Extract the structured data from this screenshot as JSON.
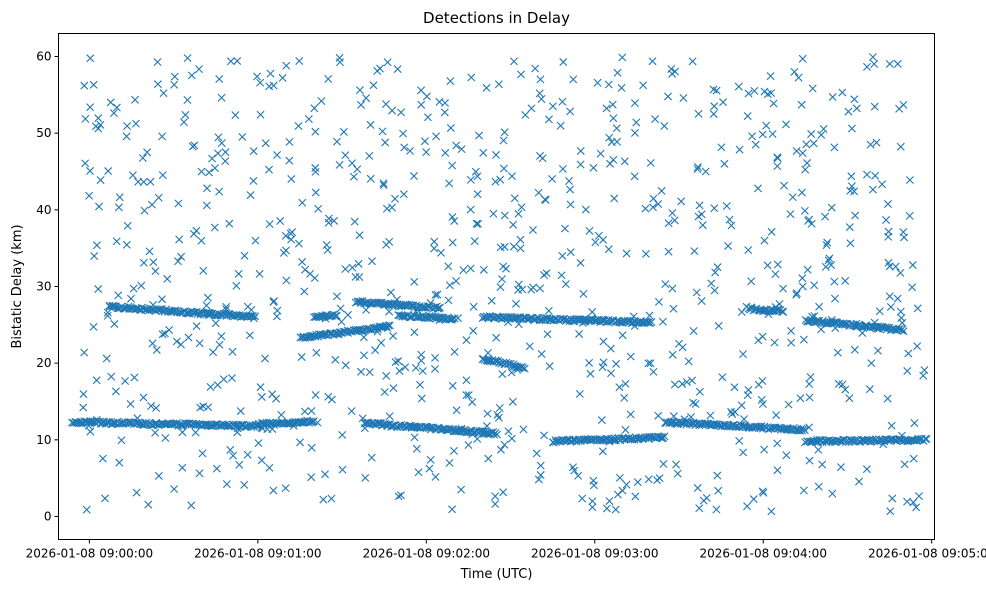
{
  "chart_data": {
    "type": "scatter",
    "title": "Detections in Delay",
    "xlabel": "Time (UTC)",
    "ylabel": "Bistatic Delay (km)",
    "x_ticks": [
      "2026-01-08 09:00:00",
      "2026-01-08 09:01:00",
      "2026-01-08 09:02:00",
      "2026-01-08 09:03:00",
      "2026-01-08 09:04:00",
      "2026-01-08 09:05:00"
    ],
    "y_ticks": [
      0,
      10,
      20,
      30,
      40,
      50,
      60
    ],
    "xlim": [
      "2026-01-08 08:59:49",
      "2026-01-08 09:05:01"
    ],
    "ylim": [
      -3,
      63
    ],
    "marker": "x",
    "color": "#1f77b4",
    "grid": false,
    "tracks": [
      {
        "t_start": "2026-01-08 08:59:54",
        "t_end": "2026-01-08 09:01:00",
        "delay_start": 12.3,
        "delay_end": 11.8
      },
      {
        "t_start": "2026-01-08 09:00:07",
        "t_end": "2026-01-08 09:00:59",
        "delay_start": 27.4,
        "delay_end": 26.0
      },
      {
        "t_start": "2026-01-08 09:01:00",
        "t_end": "2026-01-08 09:01:20",
        "delay_start": 12.0,
        "delay_end": 12.4
      },
      {
        "t_start": "2026-01-08 09:01:15",
        "t_end": "2026-01-08 09:01:47",
        "delay_start": 23.3,
        "delay_end": 24.8
      },
      {
        "t_start": "2026-01-08 09:01:20",
        "t_end": "2026-01-08 09:01:28",
        "delay_start": 26.0,
        "delay_end": 26.2
      },
      {
        "t_start": "2026-01-08 09:01:35",
        "t_end": "2026-01-08 09:02:05",
        "delay_start": 28.0,
        "delay_end": 27.2
      },
      {
        "t_start": "2026-01-08 09:01:38",
        "t_end": "2026-01-08 09:02:25",
        "delay_start": 12.2,
        "delay_end": 10.8
      },
      {
        "t_start": "2026-01-08 09:01:50",
        "t_end": "2026-01-08 09:02:10",
        "delay_start": 26.2,
        "delay_end": 25.8
      },
      {
        "t_start": "2026-01-08 09:02:20",
        "t_end": "2026-01-08 09:02:35",
        "delay_start": 20.6,
        "delay_end": 19.4
      },
      {
        "t_start": "2026-01-08 09:02:20",
        "t_end": "2026-01-08 09:03:20",
        "delay_start": 26.0,
        "delay_end": 25.3
      },
      {
        "t_start": "2026-01-08 09:02:45",
        "t_end": "2026-01-08 09:03:25",
        "delay_start": 9.8,
        "delay_end": 10.3
      },
      {
        "t_start": "2026-01-08 09:03:25",
        "t_end": "2026-01-08 09:04:15",
        "delay_start": 12.3,
        "delay_end": 11.3
      },
      {
        "t_start": "2026-01-08 09:03:55",
        "t_end": "2026-01-08 09:04:07",
        "delay_start": 27.0,
        "delay_end": 26.8
      },
      {
        "t_start": "2026-01-08 09:04:15",
        "t_end": "2026-01-08 09:04:50",
        "delay_start": 25.6,
        "delay_end": 24.3
      },
      {
        "t_start": "2026-01-08 09:04:15",
        "t_end": "2026-01-08 09:04:58",
        "delay_start": 9.8,
        "delay_end": 10.0
      }
    ],
    "background_clutter": {
      "t_start": "2026-01-08 08:59:57",
      "t_end": "2026-01-08 09:04:58",
      "delay_min": 0.5,
      "delay_max": 60.0,
      "approx_count": 900
    }
  }
}
